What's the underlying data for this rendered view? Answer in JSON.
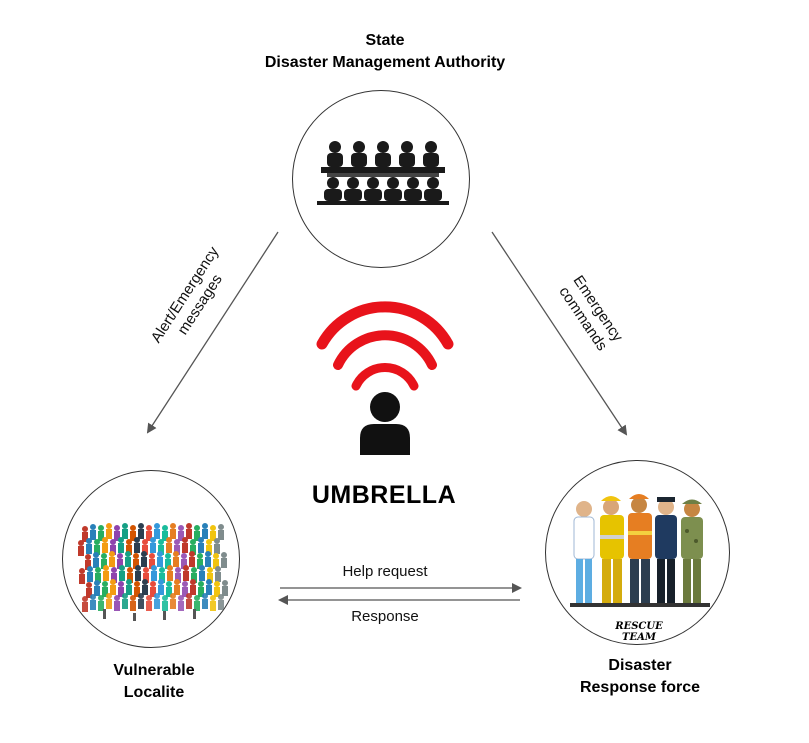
{
  "nodes": {
    "state": {
      "line1": "State",
      "line2": "Disaster Management Authority"
    },
    "vulnerable": {
      "line1": "Vulnerable",
      "line2": "Localite"
    },
    "responders": {
      "line1": "Disaster",
      "line2": "Response force",
      "badge": "RESCUE TEAM"
    }
  },
  "center": {
    "title": "UMBRELLA"
  },
  "edges": {
    "alert": {
      "line1": "Alert/Emergency",
      "line2": "messages"
    },
    "commands": {
      "line1": "Emergency",
      "line2": "commands"
    },
    "help": "Help request",
    "response": "Response"
  },
  "colors": {
    "signal": "#e8131b",
    "person": "#111111",
    "arrow": "#555555"
  }
}
